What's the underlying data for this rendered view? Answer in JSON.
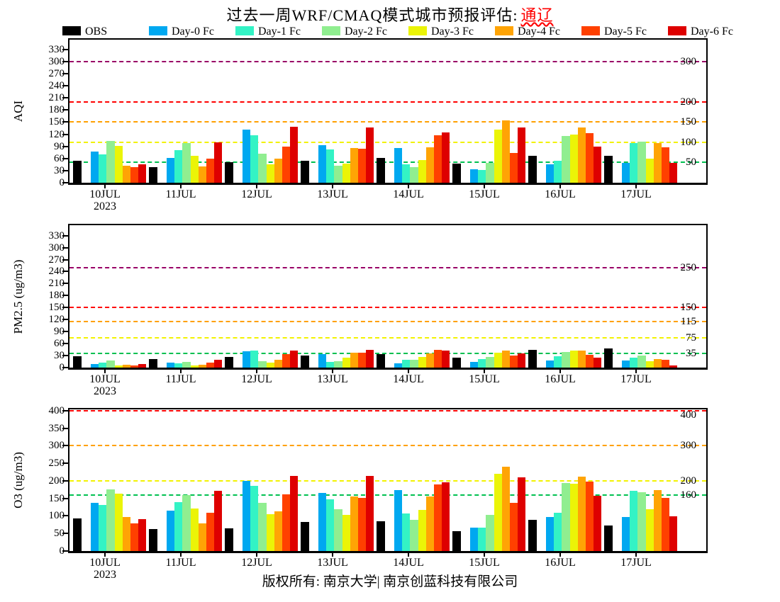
{
  "title": {
    "prefix": "过去一周WRF/CMAQ模式城市预报评估:",
    "city": "通辽"
  },
  "legend": [
    {
      "label": "OBS",
      "color": "#000000"
    },
    {
      "label": "Day-0 Fc",
      "color": "#00A8F0"
    },
    {
      "label": "Day-1 Fc",
      "color": "#33F3C5"
    },
    {
      "label": "Day-2 Fc",
      "color": "#90EE90"
    },
    {
      "label": "Day-3 Fc",
      "color": "#EBF407"
    },
    {
      "label": "Day-4 Fc",
      "color": "#FFA405"
    },
    {
      "label": "Day-5 Fc",
      "color": "#FF4000"
    },
    {
      "label": "Day-6 Fc",
      "color": "#DE0000"
    }
  ],
  "x_categories": [
    "10JUL",
    "11JUL",
    "12JUL",
    "13JUL",
    "14JUL",
    "15JUL",
    "16JUL",
    "17JUL"
  ],
  "x_year": "2023",
  "footer": {
    "copyright": "版权所有: 南京大学| 南京创蓝科技有限公司"
  },
  "chart_data": [
    {
      "type": "bar",
      "title": "AQI panel",
      "ylabel": "AQI",
      "categories": [
        "10JUL",
        "11JUL",
        "12JUL",
        "13JUL",
        "14JUL",
        "15JUL",
        "16JUL",
        "17JUL"
      ],
      "yticks": [
        0,
        30,
        60,
        90,
        120,
        150,
        180,
        210,
        240,
        270,
        300,
        330
      ],
      "ylim": [
        0,
        330
      ],
      "grid": "dashed-reference-lines",
      "legend_position": "top",
      "ref_lines": [
        {
          "value": 50,
          "label": "50",
          "color": "#00C050"
        },
        {
          "value": 100,
          "label": "100",
          "color": "#F2F200"
        },
        {
          "value": 150,
          "label": "150",
          "color": "#FFA000"
        },
        {
          "value": 200,
          "label": "200",
          "color": "#FF0000"
        },
        {
          "value": 300,
          "label": "300",
          "color": "#990066"
        }
      ],
      "series": [
        {
          "name": "OBS",
          "values": [
            55,
            38,
            50,
            55,
            61,
            48,
            67,
            66
          ]
        },
        {
          "name": "Day-0 Fc",
          "values": [
            78,
            62,
            131,
            93,
            86,
            34,
            45,
            49
          ]
        },
        {
          "name": "Day-1 Fc",
          "values": [
            71,
            81,
            117,
            82,
            45,
            32,
            55,
            99
          ]
        },
        {
          "name": "Day-2 Fc",
          "values": [
            103,
            98,
            72,
            42,
            39,
            49,
            116,
            102
          ]
        },
        {
          "name": "Day-3 Fc",
          "values": [
            91,
            67,
            45,
            48,
            56,
            132,
            120,
            59
          ]
        },
        {
          "name": "Day-4 Fc",
          "values": [
            42,
            41,
            59,
            86,
            87,
            154,
            137,
            99
          ]
        },
        {
          "name": "Day-5 Fc",
          "values": [
            38,
            60,
            89,
            84,
            118,
            73,
            123,
            87
          ]
        },
        {
          "name": "Day-6 Fc",
          "values": [
            46,
            100,
            138,
            136,
            125,
            136,
            89,
            49
          ]
        }
      ]
    },
    {
      "type": "bar",
      "title": "PM2.5 panel",
      "ylabel": "PM2.5 (ug/m3)",
      "categories": [
        "10JUL",
        "11JUL",
        "12JUL",
        "13JUL",
        "14JUL",
        "15JUL",
        "16JUL",
        "17JUL"
      ],
      "yticks": [
        0,
        30,
        60,
        90,
        120,
        150,
        180,
        210,
        240,
        270,
        300,
        330
      ],
      "ylim": [
        0,
        330
      ],
      "grid": "dashed-reference-lines",
      "legend_position": "top",
      "ref_lines": [
        {
          "value": 35,
          "label": "35",
          "color": "#00C050"
        },
        {
          "value": 75,
          "label": "75",
          "color": "#F2F200"
        },
        {
          "value": 115,
          "label": "115",
          "color": "#FFA000"
        },
        {
          "value": 150,
          "label": "150",
          "color": "#FF0000"
        },
        {
          "value": 250,
          "label": "250",
          "color": "#990066"
        }
      ],
      "series": [
        {
          "name": "OBS",
          "values": [
            29,
            22,
            26,
            31,
            33,
            24,
            45,
            47
          ]
        },
        {
          "name": "Day-0 Fc",
          "values": [
            8,
            12,
            41,
            33,
            10,
            14,
            17,
            17
          ]
        },
        {
          "name": "Day-1 Fc",
          "values": [
            12,
            10,
            42,
            14,
            19,
            21,
            28,
            25
          ]
        },
        {
          "name": "Day-2 Fc",
          "values": [
            17,
            15,
            16,
            16,
            19,
            27,
            39,
            30
          ]
        },
        {
          "name": "Day-3 Fc",
          "values": [
            6,
            6,
            13,
            24,
            26,
            38,
            42,
            16
          ]
        },
        {
          "name": "Day-4 Fc",
          "values": [
            7,
            7,
            19,
            38,
            36,
            43,
            42,
            21
          ]
        },
        {
          "name": "Day-5 Fc",
          "values": [
            6,
            13,
            33,
            38,
            44,
            31,
            32,
            19
          ]
        },
        {
          "name": "Day-6 Fc",
          "values": [
            9,
            19,
            43,
            45,
            42,
            35,
            24,
            6
          ]
        }
      ]
    },
    {
      "type": "bar",
      "title": "O3 panel",
      "ylabel": "O3 (ug/m3)",
      "categories": [
        "10JUL",
        "11JUL",
        "12JUL",
        "13JUL",
        "14JUL",
        "15JUL",
        "16JUL",
        "17JUL"
      ],
      "yticks": [
        0,
        50,
        100,
        150,
        200,
        250,
        300,
        350,
        400
      ],
      "ylim": [
        0,
        400
      ],
      "grid": "dashed-reference-lines",
      "legend_position": "top",
      "ref_lines": [
        {
          "value": 160,
          "label": "160",
          "color": "#00C050"
        },
        {
          "value": 200,
          "label": "200",
          "color": "#F2F200"
        },
        {
          "value": 300,
          "label": "300",
          "color": "#FFA000"
        },
        {
          "value": 400,
          "label": "400",
          "color": "#FF0000"
        }
      ],
      "series": [
        {
          "name": "OBS",
          "values": [
            92,
            62,
            65,
            82,
            84,
            57,
            88,
            73
          ]
        },
        {
          "name": "Day-0 Fc",
          "values": [
            137,
            116,
            200,
            165,
            173,
            67,
            98,
            96
          ]
        },
        {
          "name": "Day-1 Fc",
          "values": [
            131,
            140,
            186,
            147,
            107,
            67,
            109,
            171
          ]
        },
        {
          "name": "Day-2 Fc",
          "values": [
            176,
            159,
            137,
            120,
            89,
            103,
            193,
            168
          ]
        },
        {
          "name": "Day-3 Fc",
          "values": [
            163,
            122,
            105,
            103,
            118,
            221,
            191,
            120
          ]
        },
        {
          "name": "Day-4 Fc",
          "values": [
            98,
            79,
            114,
            156,
            155,
            241,
            212,
            173
          ]
        },
        {
          "name": "Day-5 Fc",
          "values": [
            79,
            110,
            161,
            151,
            189,
            137,
            199,
            151
          ]
        },
        {
          "name": "Day-6 Fc",
          "values": [
            91,
            172,
            214,
            214,
            195,
            211,
            157,
            100
          ]
        }
      ]
    }
  ]
}
